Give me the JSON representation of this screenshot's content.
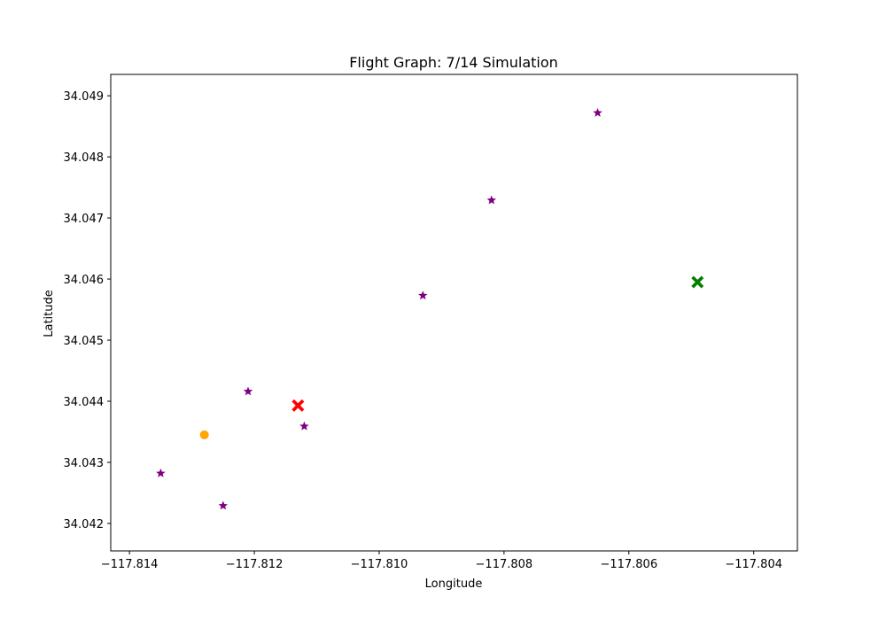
{
  "chart_data": {
    "type": "scatter",
    "title": "Flight Graph: 7/14 Simulation",
    "xlabel": "Longitude",
    "ylabel": "Latitude",
    "xlim": [
      -117.8143,
      -117.8033
    ],
    "ylim": [
      34.04155,
      34.04935
    ],
    "xticks": [
      -117.814,
      -117.812,
      -117.81,
      -117.808,
      -117.806,
      -117.804
    ],
    "xtick_labels": [
      "−117.814",
      "−117.812",
      "−117.810",
      "−117.808",
      "−117.806",
      "−117.804"
    ],
    "yticks": [
      34.042,
      34.043,
      34.044,
      34.045,
      34.046,
      34.047,
      34.048,
      34.049
    ],
    "ytick_labels": [
      "34.042",
      "34.043",
      "34.044",
      "34.045",
      "34.046",
      "34.047",
      "34.048",
      "34.049"
    ],
    "grid": false,
    "series": [
      {
        "marker": "star",
        "color": "#800080",
        "points": [
          {
            "x": -117.8135,
            "y": 34.04282
          },
          {
            "x": -117.8125,
            "y": 34.04229
          },
          {
            "x": -117.8121,
            "y": 34.04416
          },
          {
            "x": -117.8112,
            "y": 34.04359
          },
          {
            "x": -117.8093,
            "y": 34.04573
          },
          {
            "x": -117.8082,
            "y": 34.04729
          },
          {
            "x": -117.8065,
            "y": 34.04872
          }
        ]
      },
      {
        "marker": "circle",
        "color": "#ffa500",
        "points": [
          {
            "x": -117.8128,
            "y": 34.04345
          }
        ]
      },
      {
        "marker": "x-filled",
        "color": "#ff0000",
        "points": [
          {
            "x": -117.8113,
            "y": 34.04393
          }
        ]
      },
      {
        "marker": "x-filled",
        "color": "#008000",
        "points": [
          {
            "x": -117.8049,
            "y": 34.04595
          }
        ]
      }
    ]
  }
}
